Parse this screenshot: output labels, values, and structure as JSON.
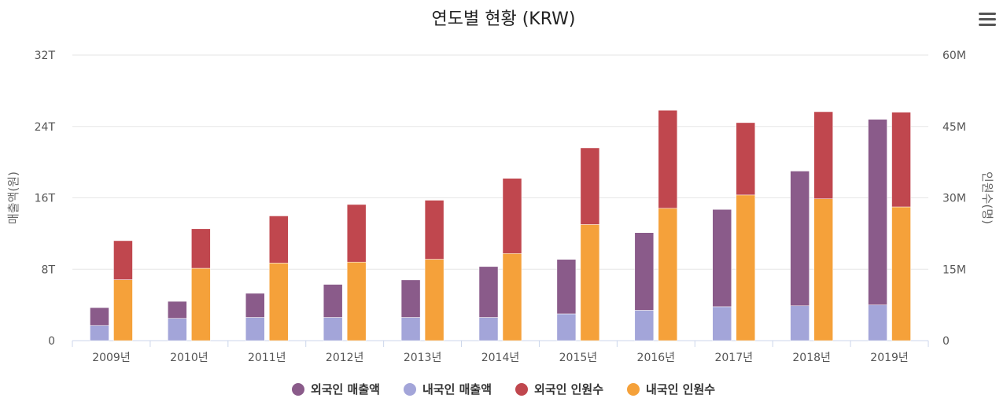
{
  "chart_data": {
    "type": "bar",
    "title": "연도별 현황 (KRW)",
    "categories": [
      "2009년",
      "2010년",
      "2011년",
      "2012년",
      "2013년",
      "2014년",
      "2015년",
      "2016년",
      "2017년",
      "2018년",
      "2019년"
    ],
    "y_left": {
      "label": "매출액(원)",
      "range": [
        0,
        32
      ],
      "ticks": [
        "0",
        "8T",
        "16T",
        "24T",
        "32T"
      ],
      "unit": "T"
    },
    "y_right": {
      "label": "인원수(명)",
      "range": [
        0,
        60
      ],
      "ticks": [
        "0",
        "15M",
        "30M",
        "45M",
        "60M"
      ],
      "unit": "M"
    },
    "stacks": [
      {
        "stack": "매출액",
        "axis": "left",
        "series_order": [
          "내국인 매출액",
          "외국인 매출액"
        ]
      },
      {
        "stack": "인원수",
        "axis": "right",
        "series_order": [
          "내국인 인원수",
          "외국인 인원수"
        ]
      }
    ],
    "series": [
      {
        "name": "외국인 매출액",
        "color": "#8a5b8a",
        "axis": "left",
        "stack": "매출액",
        "values": [
          2.0,
          1.9,
          2.7,
          3.7,
          4.2,
          5.7,
          6.1,
          8.7,
          10.9,
          15.1,
          20.8
        ]
      },
      {
        "name": "내국인 매출액",
        "color": "#a3a5d9",
        "axis": "left",
        "stack": "매출액",
        "values": [
          1.7,
          2.5,
          2.6,
          2.6,
          2.6,
          2.6,
          3.0,
          3.4,
          3.8,
          3.9,
          4.0
        ]
      },
      {
        "name": "외국인 인원수",
        "color": "#c0474e",
        "axis": "right",
        "stack": "인원수",
        "values": [
          8.2,
          8.3,
          9.9,
          12.1,
          12.4,
          15.8,
          16.1,
          20.6,
          15.2,
          18.3,
          19.9
        ]
      },
      {
        "name": "내국인 인원수",
        "color": "#f5a13a",
        "axis": "right",
        "stack": "인원수",
        "values": [
          12.8,
          15.2,
          16.3,
          16.5,
          17.1,
          18.3,
          24.4,
          27.8,
          30.6,
          29.8,
          28.1
        ]
      }
    ],
    "grid": true,
    "legend_position": "bottom-center"
  }
}
